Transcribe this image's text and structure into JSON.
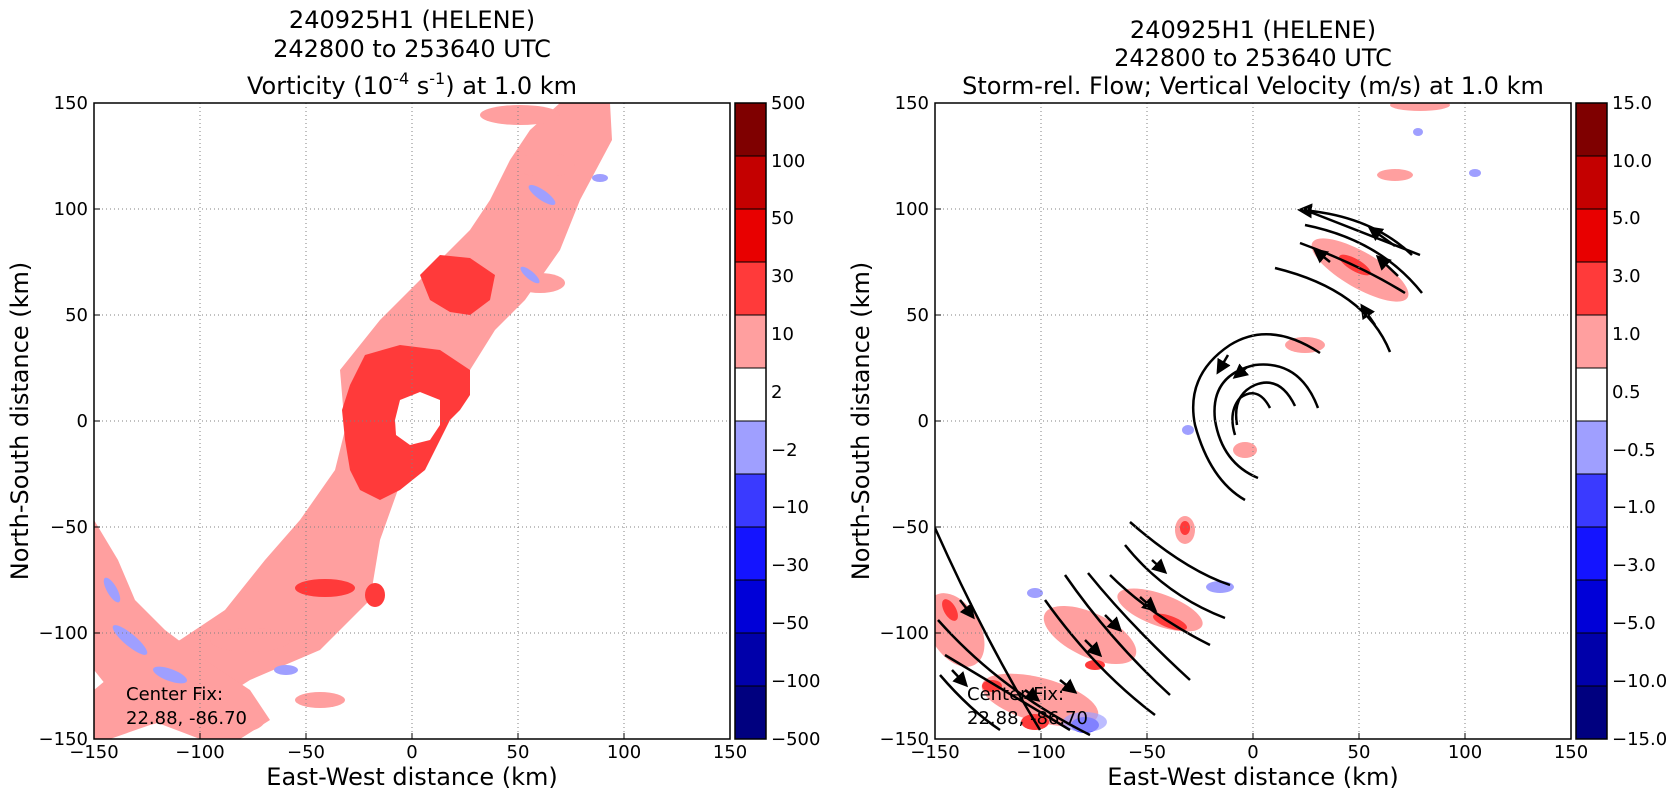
{
  "chart_data": [
    {
      "type": "heatmap",
      "title_lines": [
        "240925H1 (HELENE)",
        "242800 to 253640 UTC"
      ],
      "title_main": "Vorticity (10",
      "title_sup1": "-4",
      "title_mid": " s",
      "title_sup2": "-1",
      "title_end": ") at 1.0 km",
      "xlabel": "East-West distance (km)",
      "ylabel": "North-South distance (km)",
      "xlim": [
        -150,
        150
      ],
      "ylim": [
        -150,
        150
      ],
      "x_ticks": [
        "−150",
        "−100",
        "−50",
        "0",
        "50",
        "100",
        "150"
      ],
      "y_ticks": [
        "−150",
        "−100",
        "−50",
        "0",
        "50",
        "100",
        "150"
      ],
      "grid": true,
      "colorbar": {
        "levels": [
          "−500",
          "−100",
          "−50",
          "−30",
          "−10",
          "−2",
          "2",
          "10",
          "30",
          "50",
          "100",
          "500"
        ],
        "colors": [
          "#00007f",
          "#0000aa",
          "#0000d8",
          "#1414ff",
          "#3a3aff",
          "#9f9fff",
          "#ffffff",
          "#ff9f9f",
          "#ff3a3a",
          "#e80000",
          "#c40000",
          "#7f0000"
        ]
      },
      "annotation_lines": [
        "Center Fix:",
        "22.88, -86.70"
      ]
    },
    {
      "type": "heatmap",
      "title_lines": [
        "240925H1 (HELENE)",
        "242800 to 253640 UTC",
        "Storm-rel. Flow; Vertical Velocity (m/s) at 1.0 km"
      ],
      "xlabel": "East-West distance (km)",
      "ylabel": "North-South distance (km)",
      "xlim": [
        -150,
        150
      ],
      "ylim": [
        -150,
        150
      ],
      "x_ticks": [
        "−150",
        "−100",
        "−50",
        "0",
        "50",
        "100",
        "150"
      ],
      "y_ticks": [
        "−150",
        "−100",
        "−50",
        "0",
        "50",
        "100",
        "150"
      ],
      "grid": true,
      "colorbar": {
        "levels": [
          "−15.0",
          "−10.0",
          "−5.0",
          "−3.0",
          "−1.0",
          "−0.5",
          "0.5",
          "1.0",
          "3.0",
          "5.0",
          "10.0",
          "15.0"
        ],
        "colors": [
          "#00007f",
          "#0000aa",
          "#0000d8",
          "#1414ff",
          "#3a3aff",
          "#9f9fff",
          "#ffffff",
          "#ff9f9f",
          "#ff3a3a",
          "#e80000",
          "#c40000",
          "#7f0000"
        ]
      },
      "annotation_lines": [
        "Center Fix:",
        "22.88, -86.70"
      ]
    }
  ]
}
